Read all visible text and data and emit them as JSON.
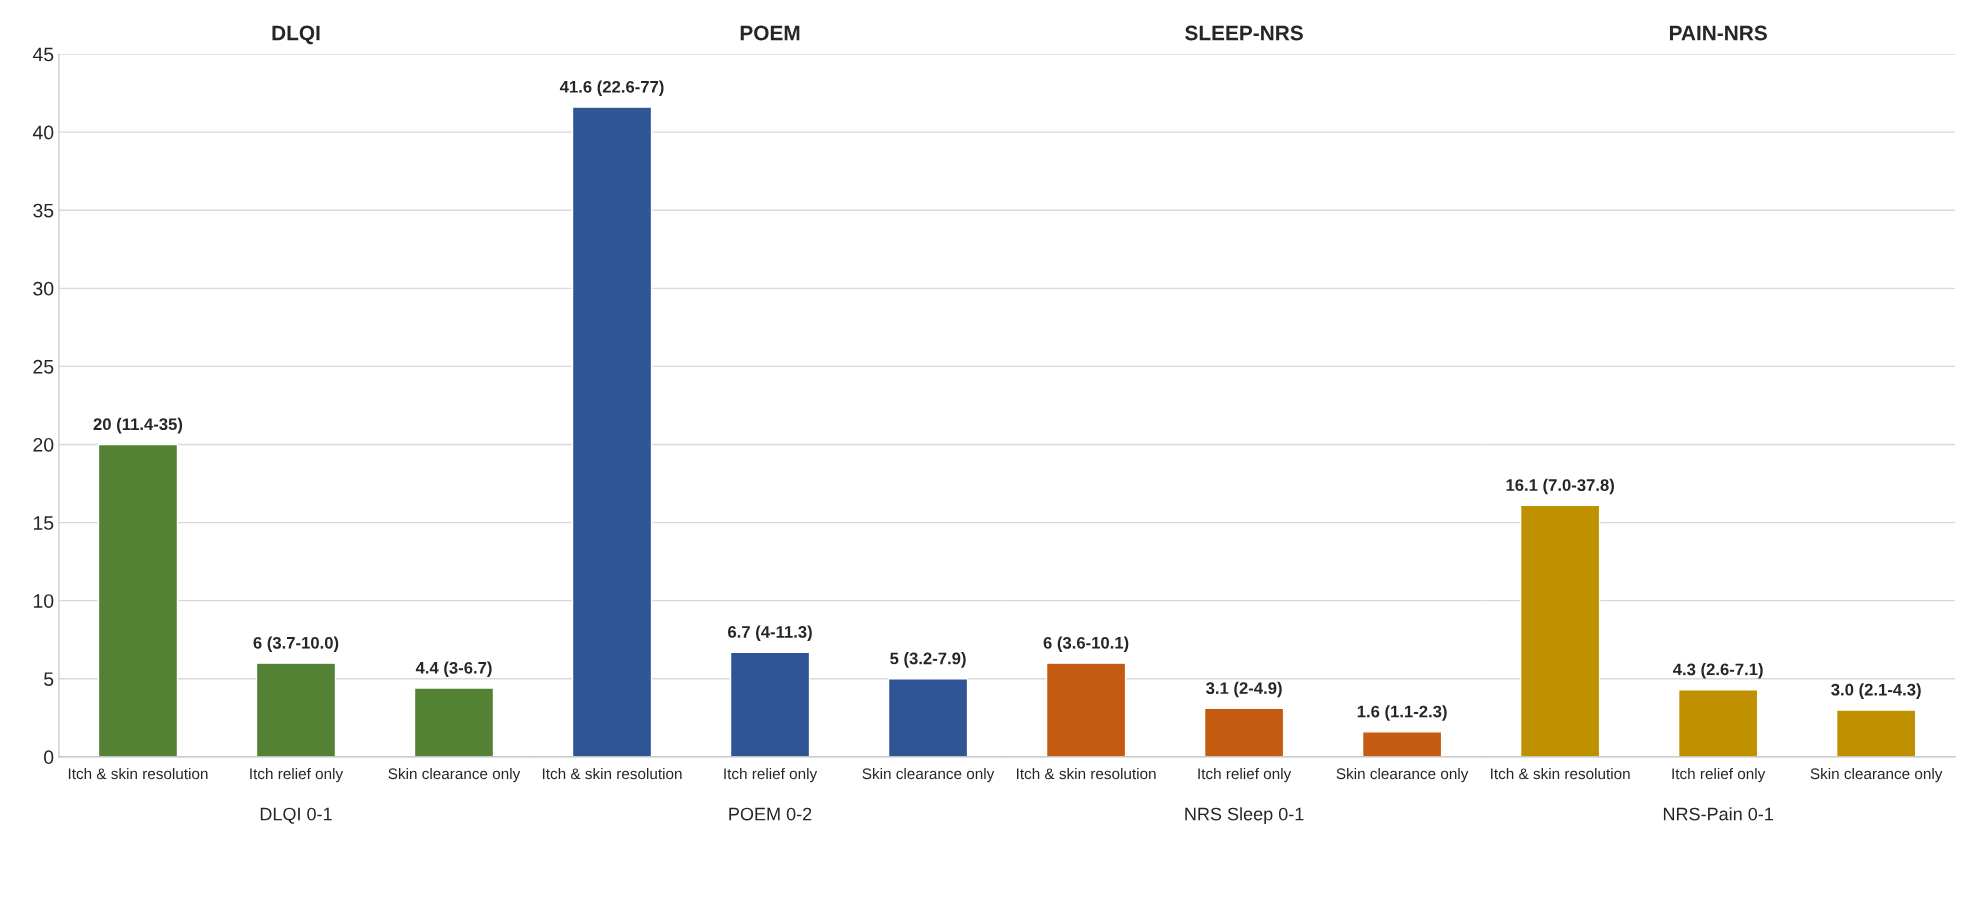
{
  "chart_data": [
    {
      "type": "bar",
      "title": "DLQI",
      "xlabel": "DLQI 0-1",
      "categories": [
        "Itch & skin resolution",
        "Itch relief only",
        "Skin clearance only"
      ],
      "values": [
        20,
        6,
        4.4
      ],
      "colors": [
        "#548235",
        "#548235",
        "#548235"
      ],
      "value_labels": [
        "20 (11.4-35)",
        "6 (3.7-10.0)",
        "4.4 (3-6.7)"
      ],
      "ylim": [
        0,
        45
      ],
      "yticks": [
        0,
        5,
        10,
        15,
        20,
        25,
        30,
        35,
        40,
        45
      ],
      "grid": "y"
    },
    {
      "type": "bar",
      "title": "POEM",
      "xlabel": "POEM 0-2",
      "categories": [
        "Itch & skin resolution",
        "Itch relief only",
        "Skin clearance only"
      ],
      "values": [
        41.6,
        6.7,
        5
      ],
      "colors": [
        "#2f5597",
        "#2f5597",
        "#2f5597"
      ],
      "value_labels": [
        "41.6 (22.6-77)",
        "6.7 (4-11.3)",
        "5 (3.2-7.9)"
      ],
      "ylim": [
        0,
        45
      ],
      "yticks": [
        0,
        5,
        10,
        15,
        20,
        25,
        30,
        35,
        40,
        45
      ],
      "grid": "y",
      "tick_labels": "x"
    },
    {
      "type": "bar",
      "title": "SLEEP-NRS",
      "xlabel": "NRS Sleep 0-1",
      "categories": [
        "Itch & skin resolution",
        "Itch relief only",
        "Skin clearance only"
      ],
      "values": [
        6,
        3.1,
        1.6
      ],
      "colors": [
        "#c55a11",
        "#c55a11",
        "#c55a11"
      ],
      "value_labels": [
        "6 (3.6-10.1)",
        "3.1 (2-4.9)",
        "1.6 (1.1-2.3)"
      ],
      "ylim": [
        0,
        45
      ],
      "yticks": [
        0,
        5,
        10,
        15,
        20,
        25,
        30,
        35,
        40,
        45
      ],
      "grid": "y",
      "tick_labels": "x"
    },
    {
      "type": "bar",
      "title": "PAIN-NRS",
      "xlabel": "NRS-Pain 0-1",
      "categories": [
        "Itch & skin resolution",
        "Itch relief only",
        "Skin clearance only"
      ],
      "values": [
        16.1,
        4.3,
        3.0
      ],
      "colors": [
        "#bf9000",
        "#bf9000",
        "#bf9000"
      ],
      "value_labels": [
        "16.1 (7.0-37.8)",
        "4.3 (2.6-7.1)",
        "3.0 (2.1-4.3)"
      ],
      "ylim": [
        0,
        45
      ],
      "yticks": [
        0,
        5,
        10,
        15,
        20,
        25,
        30,
        35,
        40,
        45
      ],
      "grid": "y",
      "tick_labels": "x"
    }
  ]
}
